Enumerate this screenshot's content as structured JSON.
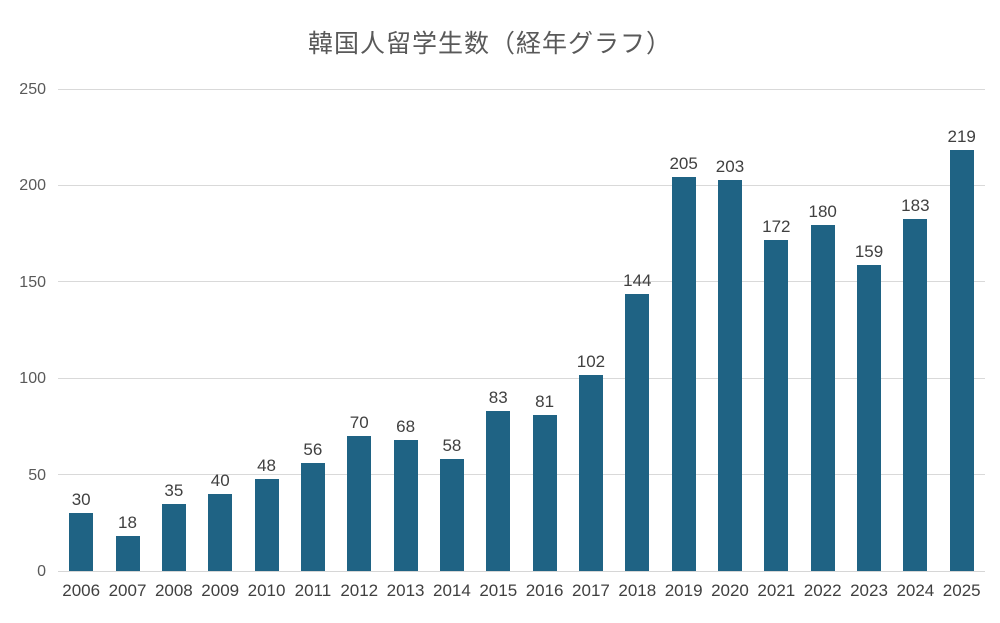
{
  "chart_data": {
    "type": "bar",
    "title": "韓国人留学生数（経年グラフ）",
    "categories": [
      "2006",
      "2007",
      "2008",
      "2009",
      "2010",
      "2011",
      "2012",
      "2013",
      "2014",
      "2015",
      "2016",
      "2017",
      "2018",
      "2019",
      "2020",
      "2021",
      "2022",
      "2023",
      "2024",
      "2025"
    ],
    "values": [
      30,
      18,
      35,
      40,
      48,
      56,
      70,
      68,
      58,
      83,
      81,
      102,
      144,
      205,
      203,
      172,
      180,
      159,
      183,
      219
    ],
    "xlabel": "",
    "ylabel": "",
    "ylim": [
      0,
      250
    ],
    "yticks": [
      0,
      50,
      100,
      150,
      200,
      250
    ],
    "grid": true,
    "legend_position": "none",
    "data_labels": true,
    "colors": {
      "bar": "#1f6384",
      "title_text": "#595959",
      "tick_text": "#595959",
      "label_text": "#404040",
      "gridline": "#d9d9d9",
      "background": "#ffffff"
    }
  }
}
